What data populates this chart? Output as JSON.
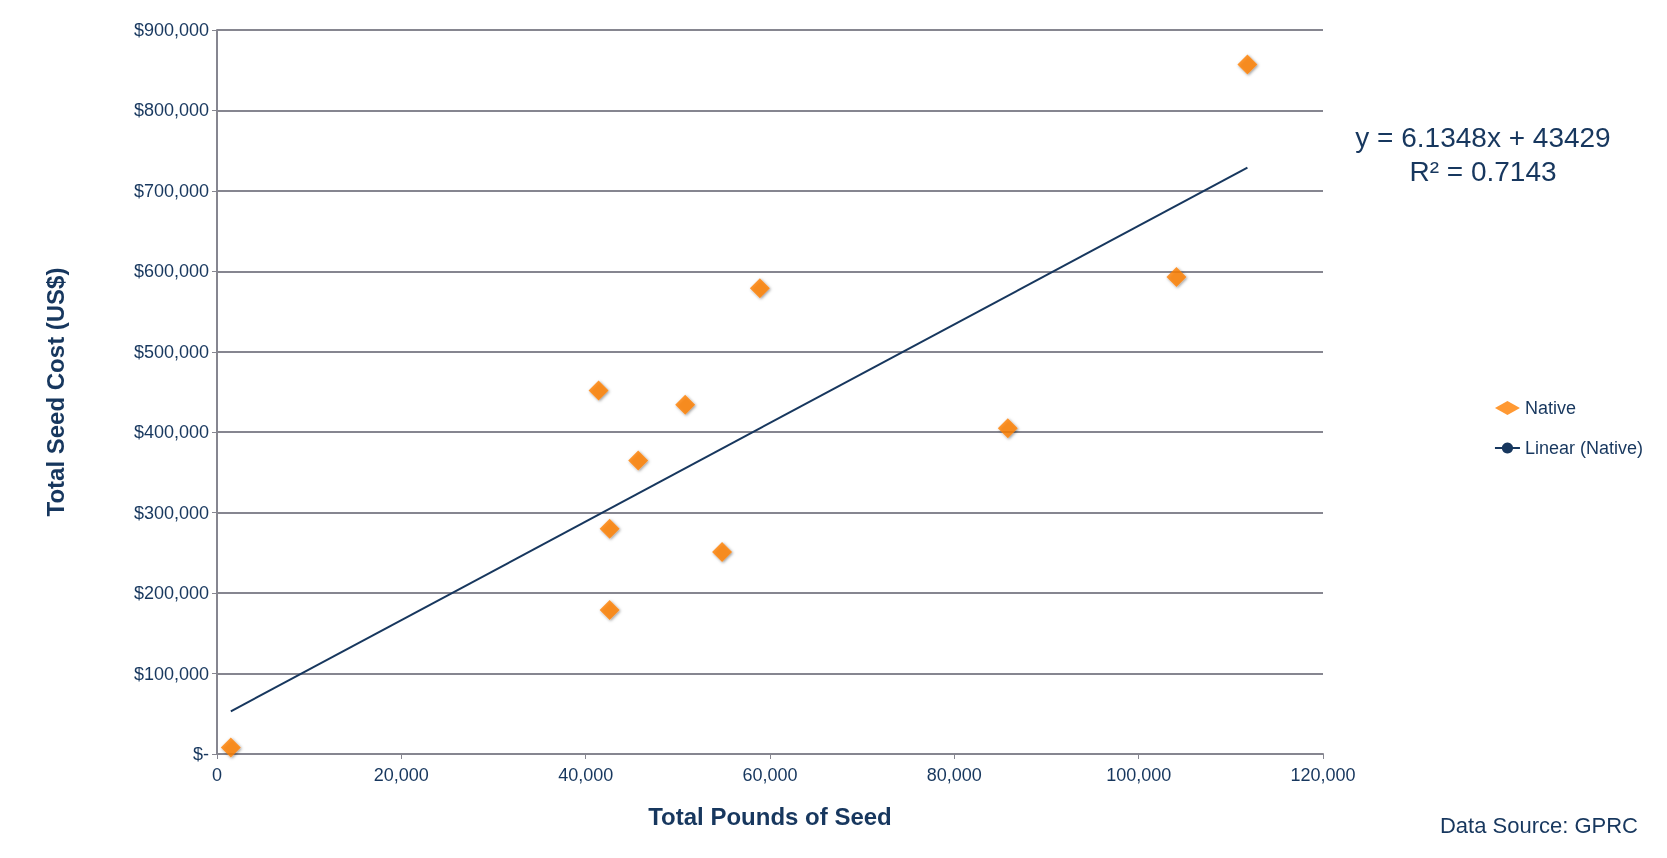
{
  "chart_data": {
    "type": "scatter",
    "xlabel": "Total Pounds of Seed",
    "ylabel": "Total Seed Cost (US$)",
    "xlim": [
      0,
      120000
    ],
    "ylim": [
      0,
      900000
    ],
    "xticks": [
      {
        "value": 0,
        "label": "0"
      },
      {
        "value": 20000,
        "label": "20,000"
      },
      {
        "value": 40000,
        "label": "40,000"
      },
      {
        "value": 60000,
        "label": "60,000"
      },
      {
        "value": 80000,
        "label": "80,000"
      },
      {
        "value": 100000,
        "label": "100,000"
      },
      {
        "value": 120000,
        "label": "120,000"
      }
    ],
    "yticks": [
      {
        "value": 0,
        "label": "$-"
      },
      {
        "value": 100000,
        "label": "$100,000"
      },
      {
        "value": 200000,
        "label": "$200,000"
      },
      {
        "value": 300000,
        "label": "$300,000"
      },
      {
        "value": 400000,
        "label": "$400,000"
      },
      {
        "value": 500000,
        "label": "$500,000"
      },
      {
        "value": 600000,
        "label": "$600,000"
      },
      {
        "value": 700000,
        "label": "$700,000"
      },
      {
        "value": 800000,
        "label": "$800,000"
      },
      {
        "value": 900000,
        "label": "$900,000"
      }
    ],
    "grid": "y",
    "legend": "right",
    "marker": "diamond",
    "series": [
      {
        "name": "Native",
        "color": "#ff7f00",
        "x": [
          1500,
          41400,
          42600,
          42600,
          45700,
          50800,
          54800,
          58900,
          85800,
          104100,
          111800
        ],
        "values": [
          8000,
          452000,
          280000,
          179000,
          365000,
          434000,
          251000,
          579000,
          405000,
          593000,
          857000
        ]
      },
      {
        "name": "Linear (Native)",
        "type": "line",
        "color": "#17375e",
        "marker": "none",
        "x": [
          1500,
          111800
        ],
        "values": [
          53000,
          729000
        ]
      }
    ],
    "annotations": [
      "y = 6.1348x + 43429\nR² = 0.7143",
      "Data Source: GPRC"
    ]
  }
}
